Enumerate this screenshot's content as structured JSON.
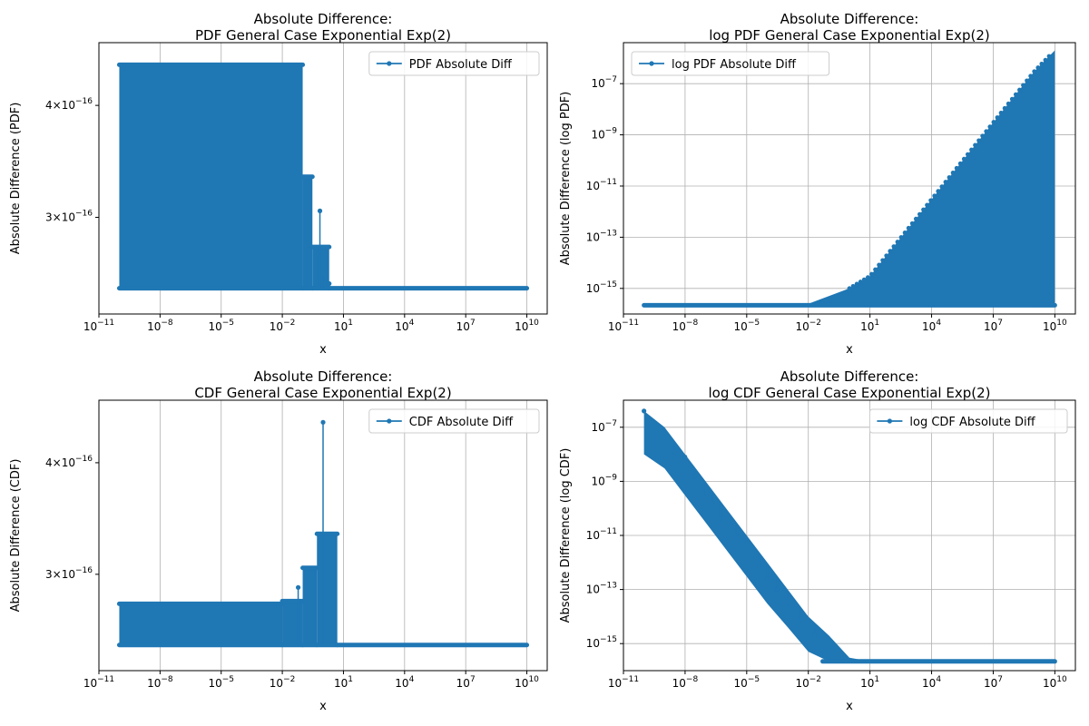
{
  "colors": {
    "line": "#1f77b4",
    "grid": "#b0b0b0",
    "axes": "#000000",
    "legend_border": "#cccccc"
  },
  "chart_data": [
    {
      "type": "line",
      "id": "pdf",
      "title_line1": "Absolute Difference:",
      "title_line2": "PDF General Case Exponential Exp(2)",
      "xlabel": "x",
      "ylabel": "Absolute Difference (PDF)",
      "xscale": "log",
      "yscale": "log",
      "xlim": [
        1e-11,
        100000000000.0
      ],
      "ylim": [
        2.34e-16,
        4.7e-16
      ],
      "grid": "x-major",
      "legend_position": "upper right",
      "xticks": [
        {
          "base": "10",
          "exp": "−11"
        },
        {
          "base": "10",
          "exp": "−8"
        },
        {
          "base": "10",
          "exp": "−5"
        },
        {
          "base": "10",
          "exp": "−2"
        },
        {
          "base": "10",
          "exp": "1"
        },
        {
          "base": "10",
          "exp": "4"
        },
        {
          "base": "10",
          "exp": "7"
        },
        {
          "base": "10",
          "exp": "10"
        }
      ],
      "xtick_values": [
        1e-11,
        1e-08,
        1e-05,
        0.01,
        10.0,
        10000.0,
        10000000.0,
        10000000000.0
      ],
      "yticks": [
        {
          "value": 4e-16,
          "mant": "4",
          "times": "×",
          "base": "10",
          "exp": "−16"
        },
        {
          "value": 3e-16,
          "mant": "3",
          "times": "×",
          "base": "10",
          "exp": "−16"
        }
      ],
      "series": [
        {
          "name": "PDF Absolute Diff",
          "segments": [
            {
              "x_from": 1e-10,
              "x_to": 0.1,
              "y_low": 2.5e-16,
              "y_high": 4.44e-16
            },
            {
              "x_from": 0.1,
              "x_to": 0.3,
              "y_low": 2.5e-16,
              "y_high": 3.33e-16
            },
            {
              "x_from": 0.3,
              "x_to": 2,
              "y_low": 2.5e-16,
              "y_high": 2.78e-16
            },
            {
              "x_from": 2,
              "x_to": 10000000000.0,
              "y_low": 2.5e-16,
              "y_high": 2.5e-16
            }
          ],
          "outliers": [
            {
              "x": 0.7,
              "y": 3.05e-16
            },
            {
              "x": 1.0,
              "y": 2.6e-16
            },
            {
              "x": 1.5,
              "y": 2.55e-16
            },
            {
              "x": 2.0,
              "y": 2.53e-16
            }
          ]
        }
      ]
    },
    {
      "type": "line",
      "id": "logpdf",
      "title_line1": "Absolute Difference:",
      "title_line2": "log PDF General Case Exponential Exp(2)",
      "xlabel": "x",
      "ylabel": "Absolute Difference (log PDF)",
      "xscale": "log",
      "yscale": "log",
      "xlim": [
        1e-11,
        100000000000.0
      ],
      "ylim": [
        1e-16,
        4e-06
      ],
      "grid": "both-major",
      "legend_position": "upper left",
      "xticks": [
        {
          "base": "10",
          "exp": "−11"
        },
        {
          "base": "10",
          "exp": "−8"
        },
        {
          "base": "10",
          "exp": "−5"
        },
        {
          "base": "10",
          "exp": "−2"
        },
        {
          "base": "10",
          "exp": "1"
        },
        {
          "base": "10",
          "exp": "4"
        },
        {
          "base": "10",
          "exp": "7"
        },
        {
          "base": "10",
          "exp": "10"
        }
      ],
      "xtick_values": [
        1e-11,
        1e-08,
        1e-05,
        0.01,
        10.0,
        10000.0,
        10000000.0,
        10000000000.0
      ],
      "yticks": [
        {
          "value": 1e-07,
          "base": "10",
          "exp": "−7"
        },
        {
          "value": 1e-09,
          "base": "10",
          "exp": "−9"
        },
        {
          "value": 1e-11,
          "base": "10",
          "exp": "−11"
        },
        {
          "value": 1e-13,
          "base": "10",
          "exp": "−13"
        },
        {
          "value": 1e-15,
          "base": "10",
          "exp": "−15"
        }
      ],
      "series": [
        {
          "name": "log PDF Absolute Diff",
          "baseline": 2.2e-16,
          "envelope": [
            {
              "x": 1e-10,
              "y": 2.2e-16
            },
            {
              "x": 0.01,
              "y": 2.5e-16
            },
            {
              "x": 0.1,
              "y": 5e-16
            },
            {
              "x": 1,
              "y": 1e-15
            },
            {
              "x": 10,
              "y": 3e-15
            },
            {
              "x": 100,
              "y": 3e-14
            },
            {
              "x": 1000,
              "y": 3e-13
            },
            {
              "x": 10000.0,
              "y": 3e-12
            },
            {
              "x": 100000.0,
              "y": 3e-11
            },
            {
              "x": 1000000.0,
              "y": 3e-10
            },
            {
              "x": 10000000.0,
              "y": 3e-09
            },
            {
              "x": 100000000.0,
              "y": 3e-08
            },
            {
              "x": 1000000000.0,
              "y": 3e-07
            },
            {
              "x": 10000000000.0,
              "y": 2e-06
            }
          ]
        }
      ]
    },
    {
      "type": "line",
      "id": "cdf",
      "title_line1": "Absolute Difference:",
      "title_line2": "CDF General Case Exponential Exp(2)",
      "xlabel": "x",
      "ylabel": "Absolute Difference (CDF)",
      "xscale": "log",
      "yscale": "log",
      "xlim": [
        1e-11,
        100000000000.0
      ],
      "ylim": [
        2.34e-16,
        4.7e-16
      ],
      "grid": "x-major",
      "legend_position": "upper right",
      "xticks": [
        {
          "base": "10",
          "exp": "−11"
        },
        {
          "base": "10",
          "exp": "−8"
        },
        {
          "base": "10",
          "exp": "−5"
        },
        {
          "base": "10",
          "exp": "−2"
        },
        {
          "base": "10",
          "exp": "1"
        },
        {
          "base": "10",
          "exp": "4"
        },
        {
          "base": "10",
          "exp": "7"
        },
        {
          "base": "10",
          "exp": "10"
        }
      ],
      "xtick_values": [
        1e-11,
        1e-08,
        1e-05,
        0.01,
        10.0,
        10000.0,
        10000000.0,
        10000000000.0
      ],
      "yticks": [
        {
          "value": 4e-16,
          "mant": "4",
          "times": "×",
          "base": "10",
          "exp": "−16"
        },
        {
          "value": 3e-16,
          "mant": "3",
          "times": "×",
          "base": "10",
          "exp": "−16"
        }
      ],
      "series": [
        {
          "name": "CDF Absolute Diff",
          "segments": [
            {
              "x_from": 1e-10,
              "x_to": 0.01,
              "y_low": 2.5e-16,
              "y_high": 2.78e-16
            },
            {
              "x_from": 0.01,
              "x_to": 0.1,
              "y_low": 2.5e-16,
              "y_high": 2.8e-16
            },
            {
              "x_from": 0.1,
              "x_to": 0.5,
              "y_low": 2.5e-16,
              "y_high": 3.05e-16
            },
            {
              "x_from": 0.5,
              "x_to": 5,
              "y_low": 2.5e-16,
              "y_high": 3.33e-16
            },
            {
              "x_from": 5,
              "x_to": 10000000000.0,
              "y_low": 2.5e-16,
              "y_high": 2.5e-16
            }
          ],
          "outliers": [
            {
              "x": 0.06,
              "y": 2.9e-16
            },
            {
              "x": 1.0,
              "y": 4.44e-16
            }
          ]
        }
      ]
    },
    {
      "type": "line",
      "id": "logcdf",
      "title_line1": "Absolute Difference:",
      "title_line2": "log CDF General Case Exponential Exp(2)",
      "xlabel": "x",
      "ylabel": "Absolute Difference (log CDF)",
      "xscale": "log",
      "yscale": "log",
      "xlim": [
        1e-11,
        100000000000.0
      ],
      "ylim": [
        1e-16,
        1e-06
      ],
      "grid": "both-major",
      "legend_position": "upper right",
      "xticks": [
        {
          "base": "10",
          "exp": "−11"
        },
        {
          "base": "10",
          "exp": "−8"
        },
        {
          "base": "10",
          "exp": "−5"
        },
        {
          "base": "10",
          "exp": "−2"
        },
        {
          "base": "10",
          "exp": "1"
        },
        {
          "base": "10",
          "exp": "4"
        },
        {
          "base": "10",
          "exp": "7"
        },
        {
          "base": "10",
          "exp": "10"
        }
      ],
      "xtick_values": [
        1e-11,
        1e-08,
        1e-05,
        0.01,
        10.0,
        10000.0,
        10000000.0,
        10000000000.0
      ],
      "yticks": [
        {
          "value": 1e-07,
          "base": "10",
          "exp": "−7"
        },
        {
          "value": 1e-09,
          "base": "10",
          "exp": "−9"
        },
        {
          "value": 1e-11,
          "base": "10",
          "exp": "−11"
        },
        {
          "value": 1e-13,
          "base": "10",
          "exp": "−13"
        },
        {
          "value": 1e-15,
          "base": "10",
          "exp": "−15"
        }
      ],
      "series": [
        {
          "name": "log CDF Absolute Diff",
          "baseline": 2.2e-16,
          "upper": [
            {
              "x": 1e-10,
              "y": 4e-07
            },
            {
              "x": 1e-09,
              "y": 1e-07
            },
            {
              "x": 1e-08,
              "y": 1e-08
            },
            {
              "x": 1e-07,
              "y": 1e-09
            },
            {
              "x": 1e-06,
              "y": 1e-10
            },
            {
              "x": 1e-05,
              "y": 1e-11
            },
            {
              "x": 0.0001,
              "y": 1e-12
            },
            {
              "x": 0.001,
              "y": 1e-13
            },
            {
              "x": 0.01,
              "y": 1e-14
            },
            {
              "x": 0.1,
              "y": 2e-15
            },
            {
              "x": 1,
              "y": 3e-16
            },
            {
              "x": 10,
              "y": 2.2e-16
            },
            {
              "x": 10000000000.0,
              "y": 2.2e-16
            }
          ],
          "lower": [
            {
              "x": 1e-10,
              "y": 1e-08
            },
            {
              "x": 1e-09,
              "y": 3e-09
            },
            {
              "x": 1e-08,
              "y": 3e-10
            },
            {
              "x": 1e-07,
              "y": 3e-11
            },
            {
              "x": 1e-06,
              "y": 3e-12
            },
            {
              "x": 1e-05,
              "y": 3e-13
            },
            {
              "x": 0.0001,
              "y": 3e-14
            },
            {
              "x": 0.001,
              "y": 4e-15
            },
            {
              "x": 0.01,
              "y": 5e-16
            },
            {
              "x": 0.1,
              "y": 2.2e-16
            },
            {
              "x": 10000000000.0,
              "y": 2.2e-16
            }
          ],
          "spikes": [
            {
              "x": 3e-09,
              "y": 1.2e-08
            },
            {
              "x": 1e-08,
              "y": 8e-09
            },
            {
              "x": 3e-08,
              "y": 1.5e-09
            },
            {
              "x": 8e-08,
              "y": 3e-10
            },
            {
              "x": 2e-07,
              "y": 1.5e-10
            },
            {
              "x": 5e-07,
              "y": 4e-11
            },
            {
              "x": 3e-06,
              "y": 1e-11
            },
            {
              "x": 1e-05,
              "y": 5e-12
            },
            {
              "x": 4e-05,
              "y": 7e-13
            },
            {
              "x": 0.0001,
              "y": 2.5e-13
            },
            {
              "x": 0.0003,
              "y": 1e-13
            },
            {
              "x": 0.001,
              "y": 3e-14
            },
            {
              "x": 0.004,
              "y": 8e-15
            },
            {
              "x": 0.02,
              "y": 2e-15
            }
          ]
        }
      ]
    }
  ]
}
